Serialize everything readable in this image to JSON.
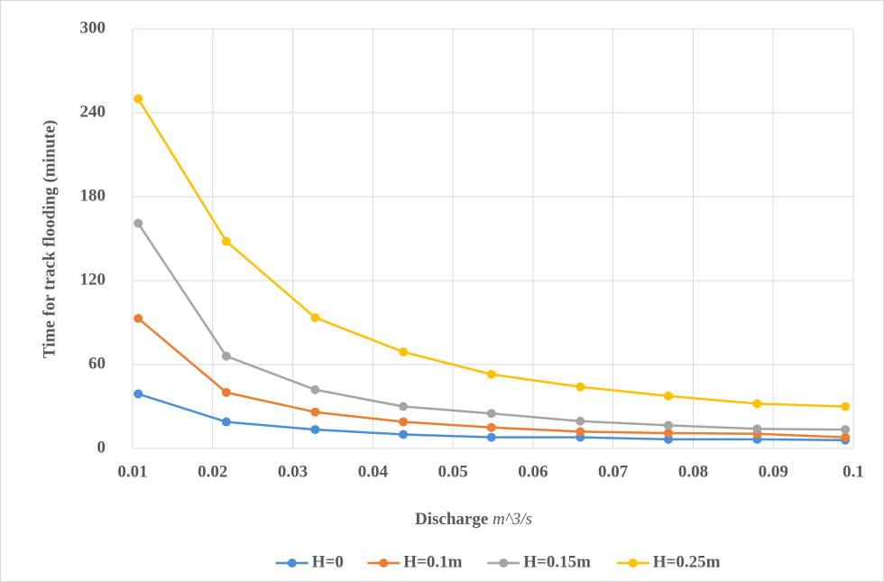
{
  "chart_data": {
    "type": "line",
    "ylabel": "Time for track flooding (minute)",
    "xlabel": "Discharge",
    "xlabel_unit": "m^3/s",
    "x": [
      0.0107,
      0.0217,
      0.0328,
      0.0438,
      0.0548,
      0.0659,
      0.0769,
      0.088,
      0.099
    ],
    "series": [
      {
        "name": "H=0",
        "color": "#4a8fd8",
        "values": [
          39,
          19,
          13.5,
          10,
          8,
          8,
          6.5,
          6.5,
          6
        ]
      },
      {
        "name": "H=0.1m",
        "color": "#ed7d31",
        "values": [
          93,
          40,
          26,
          19,
          15,
          12,
          11,
          10.5,
          8
        ]
      },
      {
        "name": "H=0.15m",
        "color": "#a5a5a5",
        "values": [
          161,
          66,
          42,
          30,
          25,
          19.5,
          16.5,
          14,
          13.5
        ]
      },
      {
        "name": "H=0.25m",
        "color": "#ffc000",
        "values": [
          250,
          148,
          93.5,
          69,
          53,
          44,
          37.5,
          32,
          30
        ]
      }
    ],
    "xlim": [
      0.01,
      0.1
    ],
    "xticks": [
      0.01,
      0.02,
      0.03,
      0.04,
      0.05,
      0.06,
      0.07,
      0.08,
      0.09,
      0.1
    ],
    "ylim": [
      0,
      300
    ],
    "yticks": [
      0,
      60,
      120,
      180,
      240,
      300
    ],
    "grid": true,
    "legend": "bottom"
  }
}
